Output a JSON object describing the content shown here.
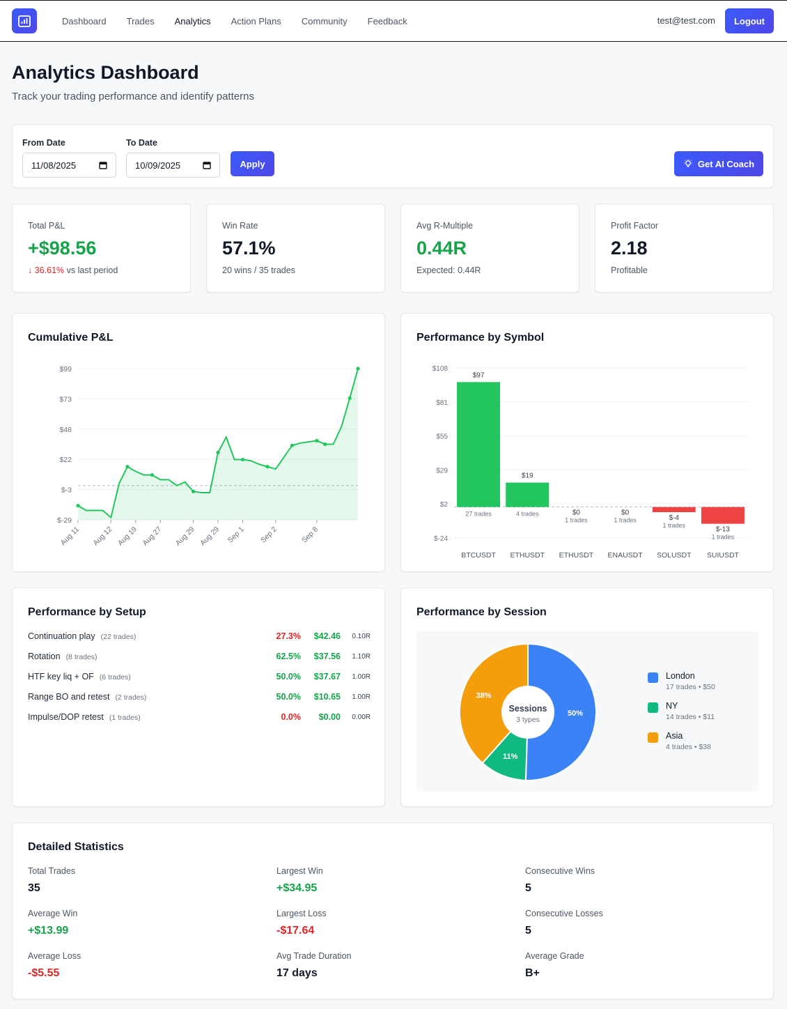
{
  "nav": {
    "links": [
      "Dashboard",
      "Trades",
      "Analytics",
      "Action Plans",
      "Community",
      "Feedback"
    ],
    "active": "Analytics",
    "email": "test@test.com",
    "logout_label": "Logout"
  },
  "header": {
    "title": "Analytics Dashboard",
    "subtitle": "Track your trading performance and identify patterns"
  },
  "filters": {
    "from_label": "From Date",
    "from_value": "11/08/2025",
    "to_label": "To Date",
    "to_value": "10/09/2025",
    "apply_label": "Apply",
    "coach_label": "Get AI Coach"
  },
  "kpis": {
    "total_pnl": {
      "label": "Total P&L",
      "value": "+$98.56",
      "change": "36.61%",
      "change_suffix": "vs last period"
    },
    "win_rate": {
      "label": "Win Rate",
      "value": "57.1%",
      "sub": "20 wins / 35 trades"
    },
    "avg_r": {
      "label": "Avg R-Multiple",
      "value": "0.44R",
      "sub": "Expected: 0.44R"
    },
    "profit_factor": {
      "label": "Profit Factor",
      "value": "2.18",
      "sub": "Profitable"
    }
  },
  "cumulative": {
    "title": "Cumulative P&L"
  },
  "symbol": {
    "title": "Performance by Symbol"
  },
  "chart_data": [
    {
      "type": "area",
      "title": "Cumulative P&L",
      "y_ticks": [
        "$99",
        "$73",
        "$48",
        "$22",
        "$-3",
        "$-29"
      ],
      "ylim": [
        -29,
        99
      ],
      "x_ticks": [
        "Aug 11",
        "Aug 12",
        "Aug 19",
        "Aug 27",
        "Aug 29",
        "Aug 29",
        "Sep 1",
        "Sep 2",
        "Sep 8"
      ],
      "values": [
        -17,
        -21,
        -21,
        -21,
        -27,
        2,
        16,
        12,
        9,
        9,
        5,
        5,
        0,
        3,
        -5,
        -6,
        -6,
        28,
        41,
        22,
        22,
        21,
        18,
        16,
        14,
        24,
        34,
        36,
        37,
        38,
        35,
        35,
        50,
        74,
        99
      ],
      "baseline": 0,
      "grid": true,
      "color": "#22c55e"
    },
    {
      "type": "bar",
      "title": "Performance by Symbol",
      "categories": [
        "BTCUSDT",
        "ETHUSDT",
        "ETHUSDT",
        "ENAUSDT",
        "SOLUSDT",
        "SUIUSDT"
      ],
      "values": [
        97,
        19,
        0,
        0,
        -4,
        -13
      ],
      "value_labels": [
        "$97",
        "$19",
        "$0",
        "$0",
        "$-4",
        "$-13"
      ],
      "trade_counts": [
        "27 trades",
        "4 trades",
        "1 trades",
        "1 trades",
        "1 trades",
        "1 trades"
      ],
      "y_ticks": [
        "$108",
        "$81",
        "$55",
        "$29",
        "$2",
        "$-24"
      ],
      "ylim": [
        -24,
        108
      ],
      "positive_color": "#22c55e",
      "negative_color": "#ef4444"
    },
    {
      "type": "pie",
      "title": "Performance by Session",
      "center_label": "Sessions",
      "center_sub": "3 types",
      "slices": [
        {
          "name": "London",
          "percent": 50,
          "label": "50%",
          "color": "#3b82f6",
          "detail": "17 trades • $50"
        },
        {
          "name": "NY",
          "percent": 11,
          "label": "11%",
          "color": "#10b981",
          "detail": "14 trades • $11"
        },
        {
          "name": "Asia",
          "percent": 38,
          "label": "38%",
          "color": "#f59e0b",
          "detail": "4 trades • $38"
        }
      ]
    }
  ],
  "setup": {
    "title": "Performance by Setup",
    "rows": [
      {
        "name": "Continuation play",
        "trades": "(22 trades)",
        "win_rate": "27.3%",
        "pnl": "$42.46",
        "r": "0.10R",
        "wr_color": "#dc2626"
      },
      {
        "name": "Rotation",
        "trades": "(8 trades)",
        "win_rate": "62.5%",
        "pnl": "$37.56",
        "r": "1.10R",
        "wr_color": "#16a34a"
      },
      {
        "name": "HTF key liq + OF",
        "trades": "(6 trades)",
        "win_rate": "50.0%",
        "pnl": "$37.67",
        "r": "1.00R",
        "wr_color": "#16a34a"
      },
      {
        "name": "Range BO and retest",
        "trades": "(2 trades)",
        "win_rate": "50.0%",
        "pnl": "$10.65",
        "r": "1.00R",
        "wr_color": "#16a34a"
      },
      {
        "name": "Impulse/DOP retest",
        "trades": "(1 trades)",
        "win_rate": "0.0%",
        "pnl": "$0.00",
        "r": "0.00R",
        "wr_color": "#dc2626"
      }
    ]
  },
  "session": {
    "title": "Performance by Session"
  },
  "stats": {
    "title": "Detailed Statistics",
    "items": [
      {
        "label": "Total Trades",
        "value": "35",
        "color": "#111827"
      },
      {
        "label": "Largest Win",
        "value": "+$34.95",
        "color": "#16a34a"
      },
      {
        "label": "Consecutive Wins",
        "value": "5",
        "color": "#111827"
      },
      {
        "label": "Average Win",
        "value": "+$13.99",
        "color": "#16a34a"
      },
      {
        "label": "Largest Loss",
        "value": "-$17.64",
        "color": "#dc2626"
      },
      {
        "label": "Consecutive Losses",
        "value": "5",
        "color": "#111827"
      },
      {
        "label": "Average Loss",
        "value": "-$5.55",
        "color": "#dc2626"
      },
      {
        "label": "Avg Trade Duration",
        "value": "17 days",
        "color": "#111827"
      },
      {
        "label": "Average Grade",
        "value": "B+",
        "color": "#111827"
      }
    ]
  }
}
